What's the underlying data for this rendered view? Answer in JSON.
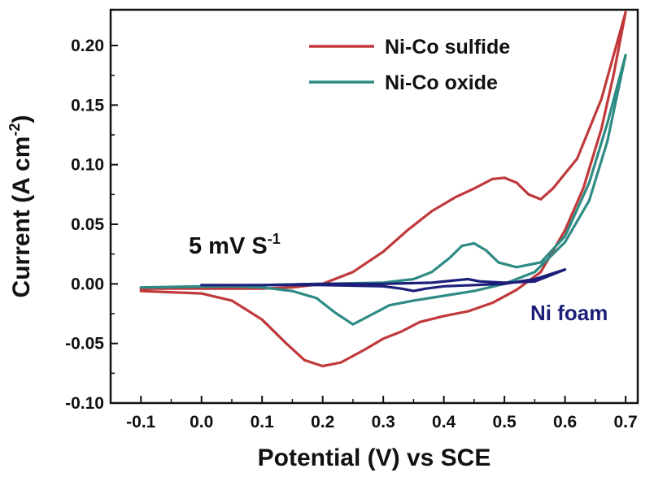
{
  "chart_data": {
    "type": "line",
    "xlabel": "Potential (V) vs SCE",
    "ylabel_main": "Current (A cm",
    "ylabel_sup": "-2",
    "ylabel_close": ")",
    "xlim": [
      -0.15,
      0.72
    ],
    "ylim": [
      -0.1,
      0.23
    ],
    "x_ticks": [
      -0.1,
      0.0,
      0.1,
      0.2,
      0.3,
      0.4,
      0.5,
      0.6,
      0.7
    ],
    "x_tick_labels": [
      "-0.1",
      "0.0",
      "0.1",
      "0.2",
      "0.3",
      "0.4",
      "0.5",
      "0.6",
      "0.7"
    ],
    "y_ticks": [
      -0.1,
      -0.05,
      0.0,
      0.05,
      0.1,
      0.15,
      0.2
    ],
    "y_tick_labels": [
      "-0.10",
      "-0.05",
      "0.00",
      "0.05",
      "0.10",
      "0.15",
      "0.20"
    ],
    "scan_rate": {
      "text": "5 mV S",
      "sup": "-1"
    },
    "series": [
      {
        "name": "Ni-Co sulfide",
        "color": "#c0393b",
        "in_legend": true,
        "points": [
          [
            -0.1,
            -0.006
          ],
          [
            0.0,
            -0.008
          ],
          [
            0.05,
            -0.014
          ],
          [
            0.1,
            -0.03
          ],
          [
            0.14,
            -0.05
          ],
          [
            0.17,
            -0.064
          ],
          [
            0.2,
            -0.069
          ],
          [
            0.23,
            -0.066
          ],
          [
            0.27,
            -0.055
          ],
          [
            0.3,
            -0.046
          ],
          [
            0.33,
            -0.04
          ],
          [
            0.36,
            -0.032
          ],
          [
            0.4,
            -0.027
          ],
          [
            0.44,
            -0.023
          ],
          [
            0.48,
            -0.016
          ],
          [
            0.52,
            -0.005
          ],
          [
            0.56,
            0.01
          ],
          [
            0.6,
            0.045
          ],
          [
            0.63,
            0.08
          ],
          [
            0.66,
            0.13
          ],
          [
            0.68,
            0.175
          ],
          [
            0.7,
            0.228
          ],
          [
            0.66,
            0.155
          ],
          [
            0.62,
            0.105
          ],
          [
            0.58,
            0.08
          ],
          [
            0.56,
            0.071
          ],
          [
            0.54,
            0.075
          ],
          [
            0.52,
            0.085
          ],
          [
            0.5,
            0.089
          ],
          [
            0.48,
            0.088
          ],
          [
            0.45,
            0.08
          ],
          [
            0.42,
            0.073
          ],
          [
            0.38,
            0.061
          ],
          [
            0.34,
            0.045
          ],
          [
            0.3,
            0.027
          ],
          [
            0.25,
            0.01
          ],
          [
            0.2,
            0.0
          ],
          [
            0.15,
            -0.003
          ],
          [
            0.1,
            -0.004
          ],
          [
            0.0,
            -0.004
          ],
          [
            -0.1,
            -0.004
          ]
        ]
      },
      {
        "name": "Ni-Co oxide",
        "color": "#2e8b84",
        "in_legend": true,
        "points": [
          [
            -0.1,
            -0.003
          ],
          [
            0.05,
            -0.002
          ],
          [
            0.1,
            -0.003
          ],
          [
            0.15,
            -0.006
          ],
          [
            0.19,
            -0.012
          ],
          [
            0.22,
            -0.024
          ],
          [
            0.25,
            -0.034
          ],
          [
            0.28,
            -0.026
          ],
          [
            0.31,
            -0.018
          ],
          [
            0.35,
            -0.014
          ],
          [
            0.4,
            -0.01
          ],
          [
            0.45,
            -0.006
          ],
          [
            0.5,
            0.0
          ],
          [
            0.55,
            0.01
          ],
          [
            0.6,
            0.035
          ],
          [
            0.64,
            0.07
          ],
          [
            0.67,
            0.12
          ],
          [
            0.7,
            0.192
          ],
          [
            0.67,
            0.135
          ],
          [
            0.64,
            0.085
          ],
          [
            0.6,
            0.04
          ],
          [
            0.56,
            0.018
          ],
          [
            0.52,
            0.014
          ],
          [
            0.49,
            0.018
          ],
          [
            0.47,
            0.028
          ],
          [
            0.45,
            0.034
          ],
          [
            0.43,
            0.032
          ],
          [
            0.41,
            0.022
          ],
          [
            0.38,
            0.01
          ],
          [
            0.35,
            0.004
          ],
          [
            0.3,
            0.001
          ],
          [
            0.2,
            0.0
          ],
          [
            0.1,
            -0.001
          ],
          [
            0.0,
            -0.002
          ],
          [
            -0.1,
            -0.003
          ]
        ]
      },
      {
        "name": "Ni foam",
        "color": "#1c1f7a",
        "in_legend": false,
        "points": [
          [
            0.0,
            -0.001
          ],
          [
            0.1,
            -0.001
          ],
          [
            0.2,
            -0.001
          ],
          [
            0.3,
            -0.002
          ],
          [
            0.33,
            -0.004
          ],
          [
            0.35,
            -0.006
          ],
          [
            0.37,
            -0.004
          ],
          [
            0.4,
            -0.002
          ],
          [
            0.45,
            -0.001
          ],
          [
            0.5,
            0.0
          ],
          [
            0.55,
            0.004
          ],
          [
            0.6,
            0.012
          ],
          [
            0.55,
            0.002
          ],
          [
            0.5,
            0.001
          ],
          [
            0.46,
            0.002
          ],
          [
            0.44,
            0.004
          ],
          [
            0.42,
            0.003
          ],
          [
            0.38,
            0.001
          ],
          [
            0.3,
            0.0
          ],
          [
            0.2,
            0.0
          ],
          [
            0.1,
            -0.001
          ],
          [
            0.0,
            -0.001
          ]
        ]
      }
    ]
  }
}
